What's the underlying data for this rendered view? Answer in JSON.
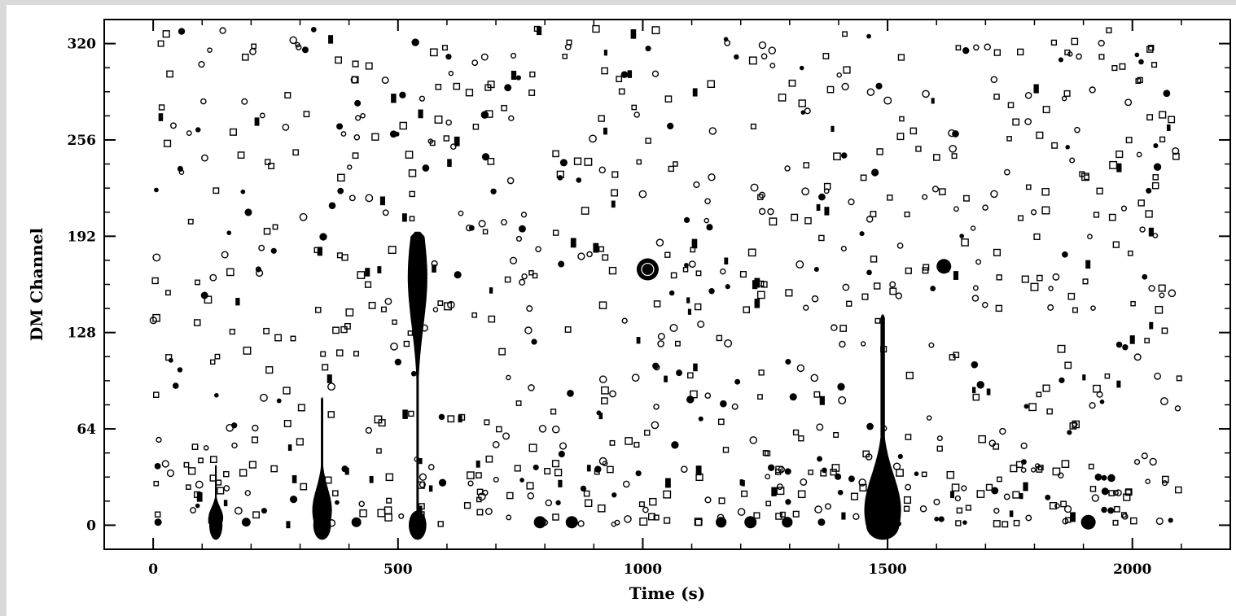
{
  "chart_data": {
    "type": "scatter",
    "title": "",
    "xlabel": "Time (s)",
    "ylabel": "DM Channel",
    "xlim": [
      -100,
      2200
    ],
    "ylim": [
      -16,
      336
    ],
    "x_ticks": [
      0,
      500,
      1000,
      1500,
      2000
    ],
    "y_ticks": [
      0,
      64,
      128,
      192,
      256,
      320
    ],
    "grid": false,
    "legend": "none",
    "marker_color": "#000000",
    "background_points": {
      "count": 900,
      "x_range": [
        0,
        2100
      ],
      "y_range": [
        0,
        330
      ],
      "marker": "small open and filled circles/squares"
    },
    "pulse_columns": [
      {
        "x": 540,
        "y_top": 195,
        "y_bottom": 0,
        "peak_y": 165,
        "width_s": 40
      },
      {
        "x": 1490,
        "y_top": 140,
        "y_bottom": 0,
        "peak_y": 10,
        "width_s": 75
      },
      {
        "x": 345,
        "y_top": 85,
        "y_bottom": 0,
        "peak_y": 10,
        "width_s": 40
      },
      {
        "x": 128,
        "y_top": 40,
        "y_bottom": 0,
        "peak_y": 5,
        "width_s": 30
      }
    ],
    "clusters": [
      {
        "x": 1010,
        "y": 170,
        "size_s": 45
      },
      {
        "x": 1615,
        "y": 172,
        "size_s": 30
      },
      {
        "x": 1355,
        "y": 170,
        "size_s": 10
      },
      {
        "x": 215,
        "y": 170,
        "size_s": 12
      },
      {
        "x": 10,
        "y": 2,
        "size_s": 15
      },
      {
        "x": 190,
        "y": 2,
        "size_s": 18
      },
      {
        "x": 415,
        "y": 2,
        "size_s": 20
      },
      {
        "x": 790,
        "y": 2,
        "size_s": 25
      },
      {
        "x": 855,
        "y": 2,
        "size_s": 25
      },
      {
        "x": 1160,
        "y": 2,
        "size_s": 22
      },
      {
        "x": 1220,
        "y": 2,
        "size_s": 25
      },
      {
        "x": 1295,
        "y": 2,
        "size_s": 22
      },
      {
        "x": 1365,
        "y": 2,
        "size_s": 15
      },
      {
        "x": 1610,
        "y": 4,
        "size_s": 12
      },
      {
        "x": 1910,
        "y": 2,
        "size_s": 30
      }
    ]
  }
}
